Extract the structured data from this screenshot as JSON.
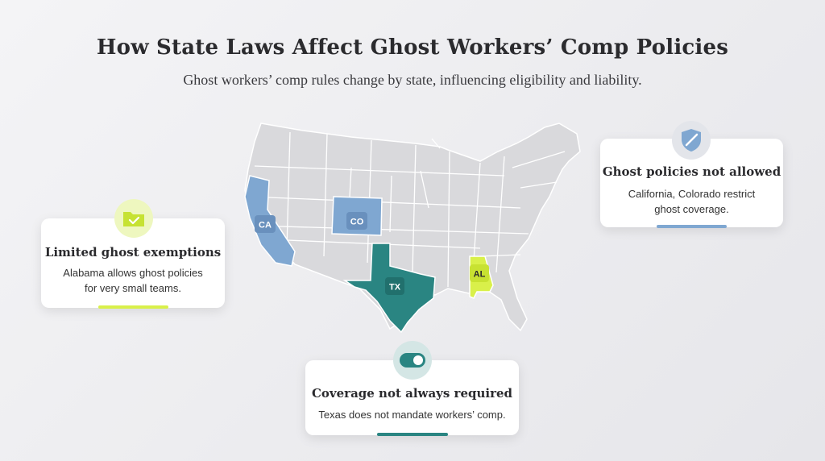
{
  "header": {
    "title": "How State Laws Affect Ghost Workers’ Comp Policies",
    "subtitle": "Ghost workers’ comp rules change by state, influencing eligibility and liability."
  },
  "states": [
    {
      "code": "CA",
      "category": "not_allowed"
    },
    {
      "code": "CO",
      "category": "not_allowed"
    },
    {
      "code": "TX",
      "category": "not_required"
    },
    {
      "code": "AL",
      "category": "limited"
    }
  ],
  "colors": {
    "not_allowed": "#7fa7d1",
    "not_required": "#2a8582",
    "limited": "#d9f04a",
    "other_states": "#d9d9dc",
    "state_border": "#ffffff"
  },
  "cards": {
    "not_allowed": {
      "icon": "shield-icon",
      "title": "Ghost policies not allowed",
      "description_lines": [
        "California, Colorado restrict",
        "ghost coverage."
      ]
    },
    "limited": {
      "icon": "folder-check-icon",
      "title": "Limited ghost exemptions",
      "description_lines": [
        "Alabama allows ghost policies",
        "for very small teams."
      ]
    },
    "not_required": {
      "icon": "toggle-icon",
      "title": "Coverage not always required",
      "description_lines": [
        "Texas does not mandate workers’ comp."
      ]
    }
  }
}
